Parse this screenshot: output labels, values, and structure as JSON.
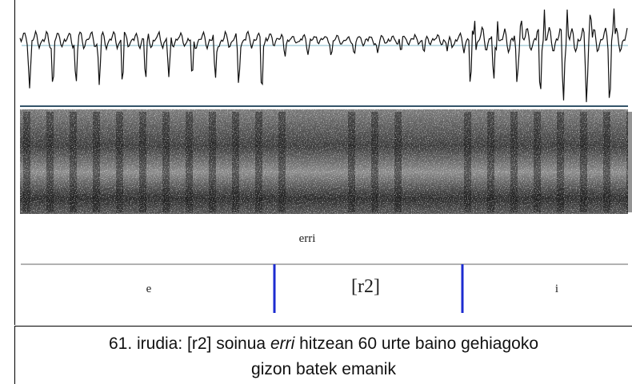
{
  "figure": {
    "word_label": "erri",
    "segments": [
      "e",
      "[r2]",
      "i"
    ]
  },
  "caption": {
    "line1": {
      "before": "61. irudia: [r2] soinua",
      "italic": "erri",
      "after": "hitzean 60 urte baino gehiagoko"
    },
    "line2": "gizon batek emanik"
  }
}
